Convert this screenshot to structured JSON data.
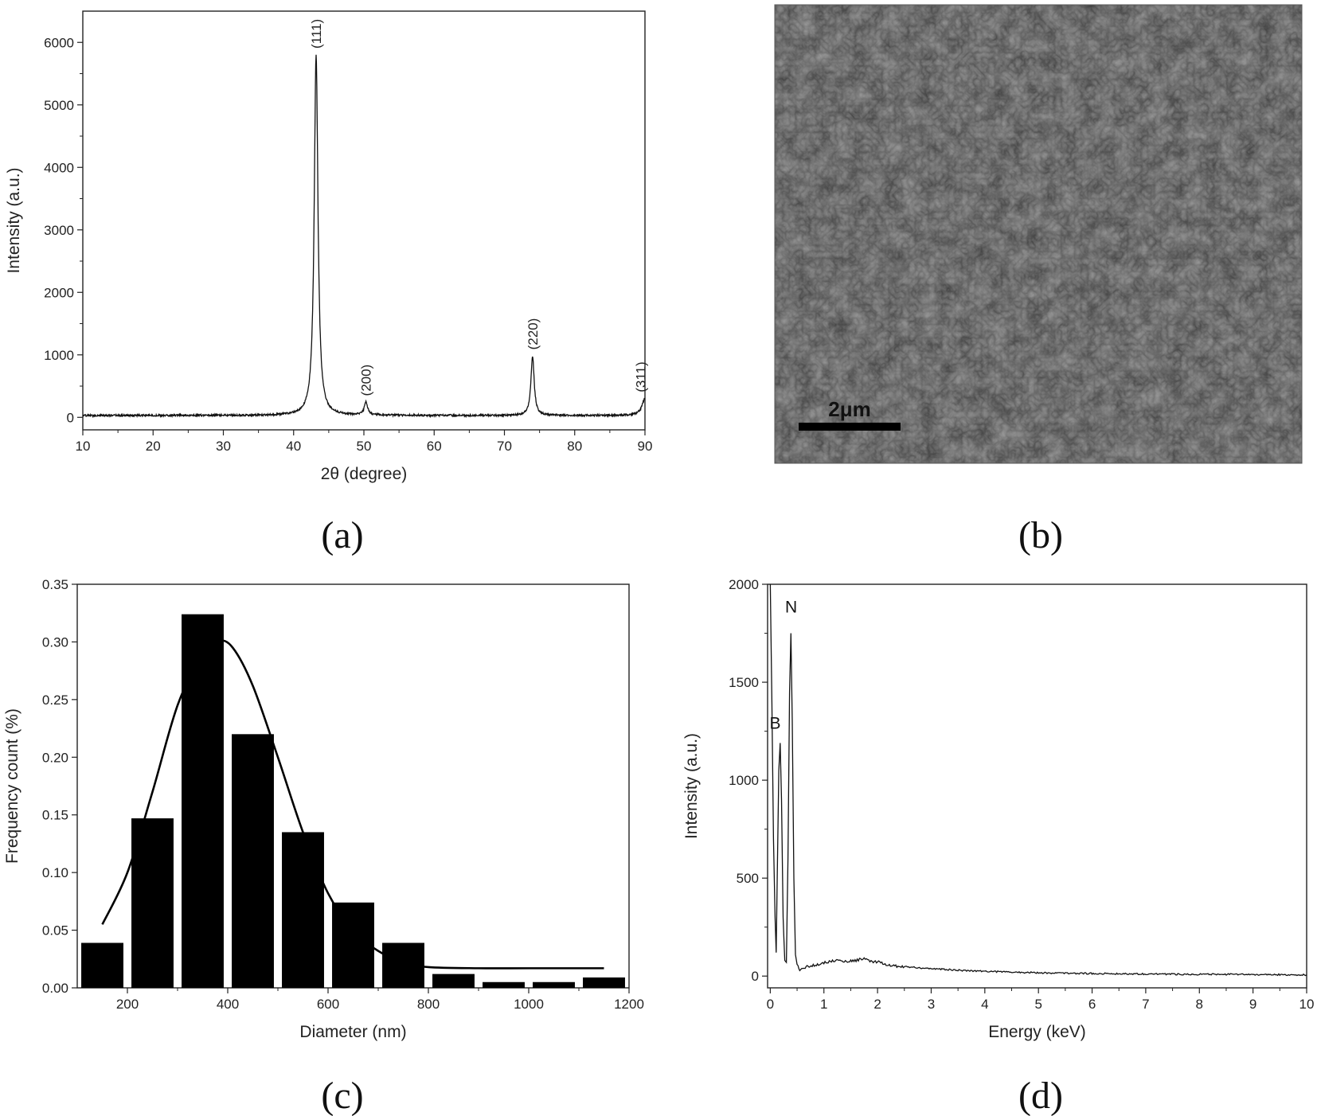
{
  "chart_data": [
    {
      "panel": "(a)",
      "type": "line",
      "xlabel": "2θ (degree)",
      "ylabel": "Intensity (a.u.)",
      "xlim": [
        10,
        90
      ],
      "ylim": [
        -200,
        6500
      ],
      "xticks": [
        10,
        20,
        30,
        40,
        50,
        60,
        70,
        80,
        90
      ],
      "yticks": [
        0,
        1000,
        2000,
        3000,
        4000,
        5000,
        6000
      ],
      "grid": false,
      "peaks": [
        {
          "x": 43.2,
          "y": 5800,
          "label": "(111)"
        },
        {
          "x": 50.3,
          "y": 240,
          "label": "(200)"
        },
        {
          "x": 74.0,
          "y": 980,
          "label": "(220)"
        },
        {
          "x": 90.0,
          "y": 300,
          "label": "(311)"
        }
      ],
      "baseline": 30
    },
    {
      "panel": "(c)",
      "type": "bar",
      "xlabel": "Diameter (nm)",
      "ylabel": "Frequency count (%)",
      "xlim": [
        100,
        1200
      ],
      "ylim": [
        0,
        0.35
      ],
      "xticks": [
        200,
        400,
        600,
        800,
        1000,
        1200
      ],
      "yticks": [
        0.0,
        0.05,
        0.1,
        0.15,
        0.2,
        0.25,
        0.3,
        0.35
      ],
      "grid": false,
      "bins": [
        {
          "x": 150,
          "value": 0.039
        },
        {
          "x": 250,
          "value": 0.147
        },
        {
          "x": 350,
          "value": 0.324
        },
        {
          "x": 450,
          "value": 0.22
        },
        {
          "x": 550,
          "value": 0.135
        },
        {
          "x": 650,
          "value": 0.074
        },
        {
          "x": 750,
          "value": 0.039
        },
        {
          "x": 850,
          "value": 0.012
        },
        {
          "x": 950,
          "value": 0.005
        },
        {
          "x": 1050,
          "value": 0.005
        },
        {
          "x": 1150,
          "value": 0.009
        }
      ],
      "bar_width": 84,
      "fit_curve": [
        [
          150,
          0.055
        ],
        [
          200,
          0.1
        ],
        [
          250,
          0.17
        ],
        [
          300,
          0.245
        ],
        [
          350,
          0.29
        ],
        [
          380,
          0.301
        ],
        [
          410,
          0.295
        ],
        [
          450,
          0.262
        ],
        [
          500,
          0.2
        ],
        [
          550,
          0.135
        ],
        [
          600,
          0.082
        ],
        [
          650,
          0.05
        ],
        [
          700,
          0.032
        ],
        [
          750,
          0.022
        ],
        [
          800,
          0.018
        ],
        [
          900,
          0.017
        ],
        [
          1000,
          0.017
        ],
        [
          1150,
          0.017
        ]
      ]
    },
    {
      "panel": "(d)",
      "type": "line",
      "xlabel": "Energy (keV)",
      "ylabel": "Intensity (a.u.)",
      "xlim": [
        -0.05,
        10
      ],
      "ylim": [
        -60,
        2000
      ],
      "xticks": [
        0,
        1,
        2,
        3,
        4,
        5,
        6,
        7,
        8,
        9,
        10
      ],
      "yticks": [
        0,
        500,
        1000,
        1500,
        2000
      ],
      "grid": false,
      "annotations": [
        {
          "text": "B",
          "x": 0.18,
          "y": 1190
        },
        {
          "text": "N",
          "x": 0.39,
          "y": 1750
        }
      ],
      "spectrum": [
        [
          0.0,
          2000
        ],
        [
          0.03,
          1400
        ],
        [
          0.06,
          700
        ],
        [
          0.09,
          300
        ],
        [
          0.11,
          120
        ],
        [
          0.13,
          500
        ],
        [
          0.16,
          1050
        ],
        [
          0.185,
          1190
        ],
        [
          0.21,
          900
        ],
        [
          0.24,
          300
        ],
        [
          0.27,
          80
        ],
        [
          0.3,
          70
        ],
        [
          0.33,
          600
        ],
        [
          0.36,
          1450
        ],
        [
          0.385,
          1750
        ],
        [
          0.41,
          1300
        ],
        [
          0.44,
          500
        ],
        [
          0.47,
          110
        ],
        [
          0.5,
          60
        ],
        [
          0.55,
          30
        ],
        [
          0.65,
          45
        ],
        [
          0.8,
          55
        ],
        [
          1.0,
          68
        ],
        [
          1.2,
          80
        ],
        [
          1.4,
          75
        ],
        [
          1.6,
          80
        ],
        [
          1.75,
          92
        ],
        [
          1.9,
          70
        ],
        [
          2.0,
          72
        ],
        [
          2.2,
          55
        ],
        [
          2.5,
          48
        ],
        [
          3.0,
          38
        ],
        [
          3.5,
          30
        ],
        [
          4.0,
          25
        ],
        [
          4.5,
          20
        ],
        [
          5.0,
          17
        ],
        [
          5.5,
          15
        ],
        [
          6.0,
          13
        ],
        [
          7.0,
          11
        ],
        [
          8.0,
          9
        ],
        [
          9.0,
          8
        ],
        [
          10.0,
          6
        ]
      ]
    }
  ],
  "panel_labels": {
    "a": "(a)",
    "b": "(b)",
    "c": "(c)",
    "d": "(d)"
  },
  "sem_image": {
    "scale_bar_label": "2μm",
    "scale_bar_length_um": 2
  }
}
